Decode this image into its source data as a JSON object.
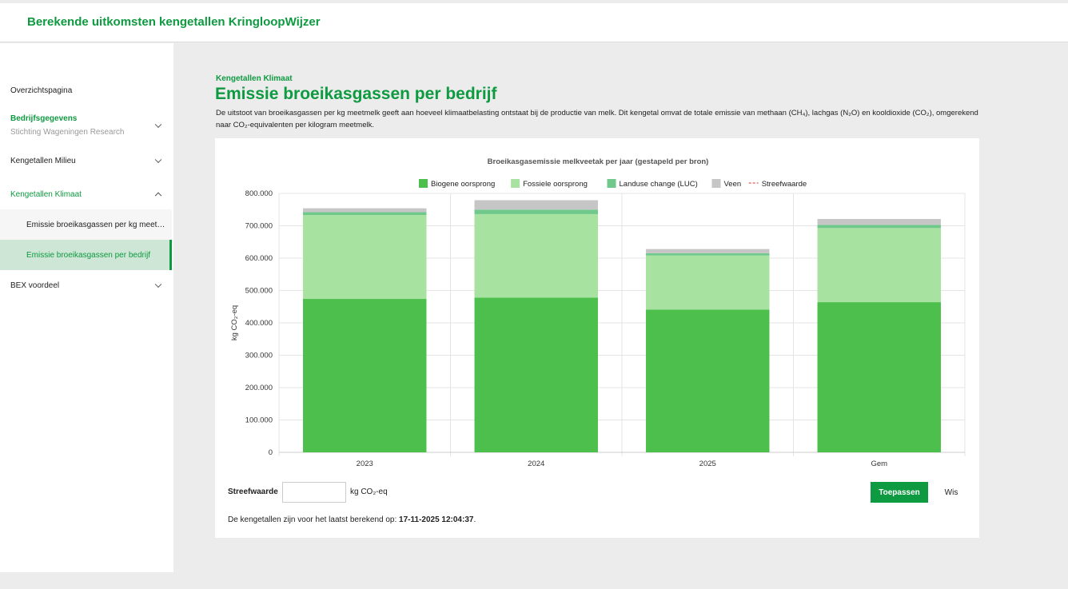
{
  "header": {
    "title": "Berekende uitkomsten kengetallen KringloopWijzer"
  },
  "sidebar": {
    "overview": "Overzichtspagina",
    "bedrijf": {
      "title": "Bedrijfsgegevens",
      "subtitle": "Stichting Wageningen Research"
    },
    "milieu": "Kengetallen Milieu",
    "klimaat": "Kengetallen Klimaat",
    "klimaat_items": [
      "Emissie broeikasgassen per kg meet…",
      "Emissie broeikasgassen per bedrijf"
    ],
    "bex": "BEX voordeel"
  },
  "page": {
    "breadcrumb": "Kengetallen Klimaat",
    "title": "Emissie broeikasgassen per bedrijf",
    "description": "De uitstoot van broeikasgassen per kg meetmelk geeft aan hoeveel klimaatbelasting ontstaat bij de productie van melk. Dit kengetal omvat de totale emissie van methaan (CH₄), lachgas (N₂O) en kooldioxide (CO₂), omgerekend naar CO₂-equivalenten per kilogram meetmelk."
  },
  "form": {
    "label": "Streefwaarde",
    "value": "",
    "unit": "kg CO₂-eq",
    "apply": "Toepassen",
    "clear": "Wis"
  },
  "footer": {
    "note": "De kengetallen zijn voor het laatst berekend op:",
    "date": "17-11-2025 12:04:37",
    "period": "."
  },
  "colors": {
    "brand": "#0e9a40"
  },
  "chart_data": {
    "type": "bar",
    "stacked": true,
    "title": "Broeikasgasemissie melkveetak per jaar (gestapeld per bron)",
    "ylabel": "kg CO₂-eq",
    "xlabel": "",
    "ylim": [
      0,
      800000
    ],
    "yticks": [
      "0",
      "100.000",
      "200.000",
      "300.000",
      "400.000",
      "500.000",
      "600.000",
      "700.000",
      "800.000"
    ],
    "categories": [
      "2023",
      "2024",
      "2025",
      "Gem"
    ],
    "series": [
      {
        "name": "Biogene oorsprong",
        "color": "#4cbf4c",
        "values": [
          474000,
          478000,
          441000,
          464000
        ]
      },
      {
        "name": "Fossiele oorsprong",
        "color": "#a8e2a0",
        "values": [
          259000,
          258000,
          167000,
          229000
        ]
      },
      {
        "name": "Landuse change (LUC)",
        "color": "#6fc98a",
        "values": [
          9000,
          14000,
          7000,
          10000
        ]
      },
      {
        "name": "Veen",
        "color": "#c6c6c6",
        "values": [
          12000,
          29000,
          13000,
          18000
        ]
      }
    ],
    "target_line": {
      "name": "Streefwaarde",
      "color": "#e05a5a"
    }
  }
}
